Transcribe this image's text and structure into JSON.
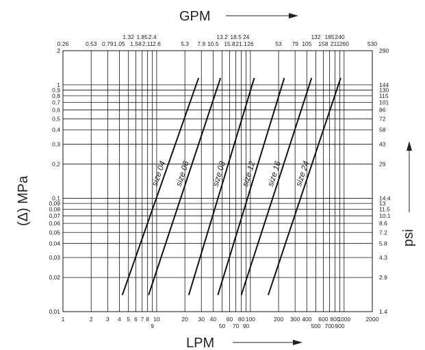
{
  "chart_data": {
    "type": "line",
    "title": "",
    "x_scale": "log",
    "y_scale": "log",
    "grid": true,
    "xlim": [
      1,
      2000
    ],
    "ylim": [
      0.01,
      2
    ],
    "x_bottom_label": "LPM",
    "x_top_label": "GPM",
    "y_left_label": "(Δ) MPa",
    "y_right_label": "psi",
    "x_bottom_ticks": [
      "1",
      "2",
      "3",
      "4",
      "5",
      "6",
      "7",
      "8",
      "9",
      "10",
      "20",
      "30",
      "40",
      "50",
      "60",
      "70",
      "80",
      "90",
      "100",
      "200",
      "300",
      "400",
      "500",
      "600",
      "700",
      "800",
      "900",
      "1000",
      "2000"
    ],
    "x_top_ticks": [
      "0.26",
      "0.53",
      "0.79",
      "1.05",
      "1.32",
      "1.58",
      "1.85",
      "2.11",
      "2.4",
      "2.6",
      "5.3",
      "7.9",
      "10.5",
      "13.2",
      "15.8",
      "18.5",
      "21.1",
      "24",
      "26",
      "53",
      "79",
      "105",
      "132",
      "158",
      "185",
      "211",
      "240",
      "260",
      "530"
    ],
    "y_left_ticks": [
      "0,01",
      "0,02",
      "0,03",
      "0,04",
      "0,05",
      "0,06",
      "0,07",
      "0,08",
      "0,09",
      "0,1",
      "0,2",
      "0,3",
      "0,4",
      "0,5",
      "0,6",
      "0,7",
      "0,8",
      "0,9",
      "1",
      "2"
    ],
    "y_right_ticks": [
      "1.4",
      "2.9",
      "4.3",
      "5.8",
      "7.2",
      "8.6",
      "10.1",
      "11.5",
      "13",
      "14.4",
      "29",
      "43",
      "58",
      "72",
      "86",
      "101",
      "115",
      "130",
      "144",
      "290"
    ],
    "series": [
      {
        "name": "size 04",
        "x": [
          4.3,
          28
        ],
        "y": [
          0.014,
          1.15
        ]
      },
      {
        "name": "size 06",
        "x": [
          8.2,
          48
        ],
        "y": [
          0.014,
          1.15
        ]
      },
      {
        "name": "size 08",
        "x": [
          22,
          110
        ],
        "y": [
          0.014,
          1.15
        ]
      },
      {
        "name": "size 12",
        "x": [
          45,
          230
        ],
        "y": [
          0.014,
          1.15
        ]
      },
      {
        "name": "size 16",
        "x": [
          80,
          450
        ],
        "y": [
          0.014,
          1.15
        ]
      },
      {
        "name": "size 24",
        "x": [
          155,
          920
        ],
        "y": [
          0.014,
          1.15
        ]
      }
    ]
  }
}
